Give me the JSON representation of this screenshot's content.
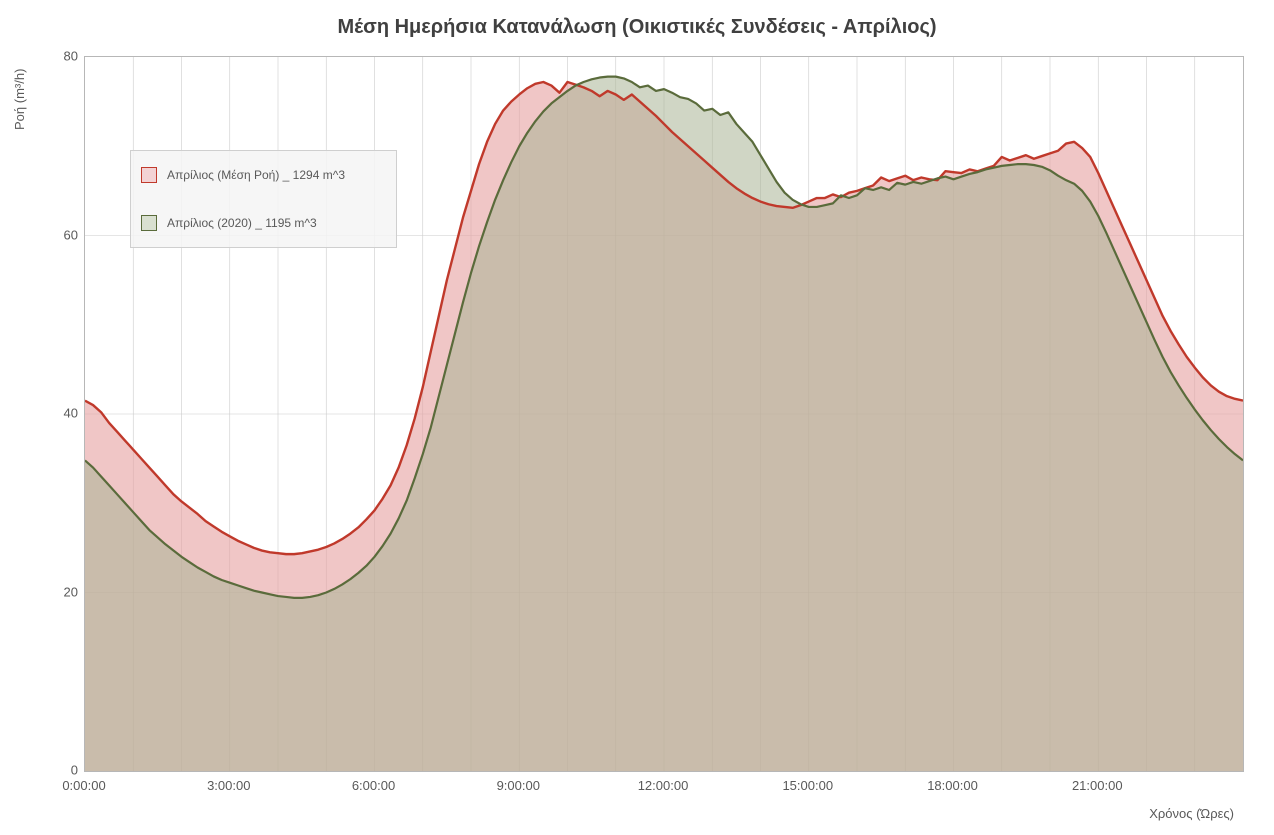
{
  "chart": {
    "type": "area",
    "title": "Μέση Ημερήσια Κατανάλωση (Οικιστικές Συνδέσεις - Απρίλιος)",
    "title_fontsize": 20,
    "title_color": "#404040",
    "y_label": "Ροή (m³/h)",
    "x_label": "Χρόνος (Ώρες)",
    "label_fontsize": 13,
    "label_color": "#595959",
    "background_color": "#ffffff",
    "plot_border_color": "#b7b7b7",
    "grid_color": "#cccccc",
    "grid_width": 0.6,
    "y": {
      "min": 0,
      "max": 80,
      "ticks": [
        0,
        20,
        40,
        60,
        80
      ]
    },
    "x": {
      "min_min": 0,
      "max_min": 1440,
      "tick_labels": [
        "0:00:00",
        "3:00:00",
        "6:00:00",
        "9:00:00",
        "12:00:00",
        "15:00:00",
        "18:00:00",
        "21:00:00"
      ],
      "tick_mins": [
        0,
        180,
        360,
        540,
        720,
        900,
        1080,
        1260
      ],
      "minor_step_min": 60
    },
    "legend": {
      "position": "top-left",
      "background": "rgba(245,245,245,0.85)",
      "border_color": "#cfcfcf",
      "items": [
        {
          "label": "Απρίλιος (Μέση Ροή) _ 1294 m^3",
          "fill": "#f3d2d4",
          "stroke": "#c0392b"
        },
        {
          "label": "Απρίλιος (2020) _ 1195 m^3",
          "fill": "#d9e0d0",
          "stroke": "#5a6b3b"
        }
      ]
    },
    "series": [
      {
        "name": "Απρίλιος (Μέση Ροή)",
        "stroke": "#c0392b",
        "stroke_width": 2.4,
        "fill": "rgba(230,160,160,0.60)",
        "data": [
          [
            0,
            41.5
          ],
          [
            10,
            41.0
          ],
          [
            20,
            40.2
          ],
          [
            30,
            39.0
          ],
          [
            40,
            38.0
          ],
          [
            50,
            37.0
          ],
          [
            60,
            36.0
          ],
          [
            70,
            35.0
          ],
          [
            80,
            34.0
          ],
          [
            90,
            33.0
          ],
          [
            100,
            32.0
          ],
          [
            110,
            31.0
          ],
          [
            120,
            30.2
          ],
          [
            130,
            29.5
          ],
          [
            140,
            28.8
          ],
          [
            150,
            28.0
          ],
          [
            160,
            27.4
          ],
          [
            170,
            26.8
          ],
          [
            180,
            26.3
          ],
          [
            190,
            25.8
          ],
          [
            200,
            25.4
          ],
          [
            210,
            25.0
          ],
          [
            220,
            24.7
          ],
          [
            230,
            24.5
          ],
          [
            240,
            24.4
          ],
          [
            250,
            24.3
          ],
          [
            260,
            24.3
          ],
          [
            270,
            24.4
          ],
          [
            280,
            24.6
          ],
          [
            290,
            24.8
          ],
          [
            300,
            25.1
          ],
          [
            310,
            25.5
          ],
          [
            320,
            26.0
          ],
          [
            330,
            26.6
          ],
          [
            340,
            27.3
          ],
          [
            350,
            28.2
          ],
          [
            360,
            29.2
          ],
          [
            370,
            30.5
          ],
          [
            380,
            32.0
          ],
          [
            390,
            34.0
          ],
          [
            400,
            36.5
          ],
          [
            410,
            39.5
          ],
          [
            420,
            43.0
          ],
          [
            430,
            47.0
          ],
          [
            440,
            51.0
          ],
          [
            450,
            55.0
          ],
          [
            460,
            58.5
          ],
          [
            470,
            62.0
          ],
          [
            480,
            65.0
          ],
          [
            490,
            68.0
          ],
          [
            500,
            70.5
          ],
          [
            510,
            72.5
          ],
          [
            520,
            74.0
          ],
          [
            530,
            75.0
          ],
          [
            540,
            75.8
          ],
          [
            550,
            76.5
          ],
          [
            560,
            77.0
          ],
          [
            570,
            77.2
          ],
          [
            580,
            76.8
          ],
          [
            590,
            76.0
          ],
          [
            600,
            77.2
          ],
          [
            610,
            76.9
          ],
          [
            620,
            76.6
          ],
          [
            630,
            76.2
          ],
          [
            640,
            75.6
          ],
          [
            650,
            76.2
          ],
          [
            660,
            75.8
          ],
          [
            670,
            75.2
          ],
          [
            680,
            75.8
          ],
          [
            690,
            75.0
          ],
          [
            700,
            74.2
          ],
          [
            710,
            73.4
          ],
          [
            720,
            72.5
          ],
          [
            730,
            71.6
          ],
          [
            740,
            70.8
          ],
          [
            750,
            70.0
          ],
          [
            760,
            69.2
          ],
          [
            770,
            68.4
          ],
          [
            780,
            67.6
          ],
          [
            790,
            66.8
          ],
          [
            800,
            66.0
          ],
          [
            810,
            65.3
          ],
          [
            820,
            64.7
          ],
          [
            830,
            64.2
          ],
          [
            840,
            63.8
          ],
          [
            850,
            63.5
          ],
          [
            860,
            63.3
          ],
          [
            870,
            63.2
          ],
          [
            880,
            63.1
          ],
          [
            890,
            63.4
          ],
          [
            900,
            63.8
          ],
          [
            910,
            64.2
          ],
          [
            920,
            64.2
          ],
          [
            930,
            64.6
          ],
          [
            940,
            64.3
          ],
          [
            950,
            64.8
          ],
          [
            960,
            65.0
          ],
          [
            970,
            65.3
          ],
          [
            980,
            65.6
          ],
          [
            990,
            66.5
          ],
          [
            1000,
            66.1
          ],
          [
            1010,
            66.4
          ],
          [
            1020,
            66.7
          ],
          [
            1030,
            66.2
          ],
          [
            1040,
            66.5
          ],
          [
            1050,
            66.3
          ],
          [
            1060,
            66.2
          ],
          [
            1070,
            67.2
          ],
          [
            1080,
            67.1
          ],
          [
            1090,
            67.0
          ],
          [
            1100,
            67.4
          ],
          [
            1110,
            67.2
          ],
          [
            1120,
            67.5
          ],
          [
            1130,
            67.8
          ],
          [
            1140,
            68.8
          ],
          [
            1150,
            68.4
          ],
          [
            1160,
            68.7
          ],
          [
            1170,
            69.0
          ],
          [
            1180,
            68.6
          ],
          [
            1190,
            68.9
          ],
          [
            1200,
            69.2
          ],
          [
            1210,
            69.5
          ],
          [
            1220,
            70.3
          ],
          [
            1230,
            70.5
          ],
          [
            1240,
            69.8
          ],
          [
            1250,
            68.8
          ],
          [
            1260,
            67.0
          ],
          [
            1270,
            65.0
          ],
          [
            1280,
            63.0
          ],
          [
            1290,
            61.0
          ],
          [
            1300,
            59.0
          ],
          [
            1310,
            57.0
          ],
          [
            1320,
            55.0
          ],
          [
            1330,
            53.0
          ],
          [
            1340,
            51.0
          ],
          [
            1350,
            49.3
          ],
          [
            1360,
            47.8
          ],
          [
            1370,
            46.4
          ],
          [
            1380,
            45.2
          ],
          [
            1390,
            44.1
          ],
          [
            1400,
            43.2
          ],
          [
            1410,
            42.5
          ],
          [
            1420,
            42.0
          ],
          [
            1430,
            41.7
          ],
          [
            1440,
            41.5
          ]
        ]
      },
      {
        "name": "Απρίλιος (2020)",
        "stroke": "#5a6b3b",
        "stroke_width": 2.2,
        "fill": "rgba(170,180,150,0.55)",
        "data": [
          [
            0,
            34.8
          ],
          [
            10,
            34.0
          ],
          [
            20,
            33.0
          ],
          [
            30,
            32.0
          ],
          [
            40,
            31.0
          ],
          [
            50,
            30.0
          ],
          [
            60,
            29.0
          ],
          [
            70,
            28.0
          ],
          [
            80,
            27.0
          ],
          [
            90,
            26.2
          ],
          [
            100,
            25.4
          ],
          [
            110,
            24.7
          ],
          [
            120,
            24.0
          ],
          [
            130,
            23.4
          ],
          [
            140,
            22.8
          ],
          [
            150,
            22.3
          ],
          [
            160,
            21.8
          ],
          [
            170,
            21.4
          ],
          [
            180,
            21.1
          ],
          [
            190,
            20.8
          ],
          [
            200,
            20.5
          ],
          [
            210,
            20.2
          ],
          [
            220,
            20.0
          ],
          [
            230,
            19.8
          ],
          [
            240,
            19.6
          ],
          [
            250,
            19.5
          ],
          [
            260,
            19.4
          ],
          [
            270,
            19.4
          ],
          [
            280,
            19.5
          ],
          [
            290,
            19.7
          ],
          [
            300,
            20.0
          ],
          [
            310,
            20.4
          ],
          [
            320,
            20.9
          ],
          [
            330,
            21.5
          ],
          [
            340,
            22.2
          ],
          [
            350,
            23.0
          ],
          [
            360,
            24.0
          ],
          [
            370,
            25.2
          ],
          [
            380,
            26.6
          ],
          [
            390,
            28.3
          ],
          [
            400,
            30.3
          ],
          [
            410,
            32.8
          ],
          [
            420,
            35.5
          ],
          [
            430,
            38.5
          ],
          [
            440,
            42.0
          ],
          [
            450,
            45.5
          ],
          [
            460,
            49.0
          ],
          [
            470,
            52.5
          ],
          [
            480,
            55.8
          ],
          [
            490,
            58.8
          ],
          [
            500,
            61.5
          ],
          [
            510,
            64.0
          ],
          [
            520,
            66.2
          ],
          [
            530,
            68.2
          ],
          [
            540,
            70.0
          ],
          [
            550,
            71.5
          ],
          [
            560,
            72.8
          ],
          [
            570,
            73.9
          ],
          [
            580,
            74.8
          ],
          [
            590,
            75.5
          ],
          [
            600,
            76.2
          ],
          [
            610,
            76.8
          ],
          [
            620,
            77.2
          ],
          [
            630,
            77.5
          ],
          [
            640,
            77.7
          ],
          [
            650,
            77.8
          ],
          [
            660,
            77.8
          ],
          [
            670,
            77.6
          ],
          [
            680,
            77.2
          ],
          [
            690,
            76.6
          ],
          [
            700,
            76.8
          ],
          [
            710,
            76.2
          ],
          [
            720,
            76.4
          ],
          [
            730,
            76.0
          ],
          [
            740,
            75.5
          ],
          [
            750,
            75.3
          ],
          [
            760,
            74.8
          ],
          [
            770,
            74.0
          ],
          [
            780,
            74.2
          ],
          [
            790,
            73.5
          ],
          [
            800,
            73.8
          ],
          [
            810,
            72.5
          ],
          [
            820,
            71.5
          ],
          [
            830,
            70.5
          ],
          [
            840,
            69.0
          ],
          [
            850,
            67.5
          ],
          [
            860,
            66.0
          ],
          [
            870,
            64.8
          ],
          [
            880,
            64.0
          ],
          [
            890,
            63.5
          ],
          [
            900,
            63.2
          ],
          [
            910,
            63.2
          ],
          [
            920,
            63.4
          ],
          [
            930,
            63.6
          ],
          [
            940,
            64.5
          ],
          [
            950,
            64.2
          ],
          [
            960,
            64.5
          ],
          [
            970,
            65.3
          ],
          [
            980,
            65.1
          ],
          [
            990,
            65.4
          ],
          [
            1000,
            65.1
          ],
          [
            1010,
            65.9
          ],
          [
            1020,
            65.7
          ],
          [
            1030,
            66.0
          ],
          [
            1040,
            65.8
          ],
          [
            1050,
            66.1
          ],
          [
            1060,
            66.4
          ],
          [
            1070,
            66.6
          ],
          [
            1080,
            66.3
          ],
          [
            1090,
            66.6
          ],
          [
            1100,
            66.9
          ],
          [
            1110,
            67.1
          ],
          [
            1120,
            67.4
          ],
          [
            1130,
            67.6
          ],
          [
            1140,
            67.8
          ],
          [
            1150,
            67.9
          ],
          [
            1160,
            68.0
          ],
          [
            1170,
            68.0
          ],
          [
            1180,
            67.9
          ],
          [
            1190,
            67.7
          ],
          [
            1200,
            67.3
          ],
          [
            1210,
            66.7
          ],
          [
            1220,
            66.2
          ],
          [
            1230,
            65.8
          ],
          [
            1240,
            65.0
          ],
          [
            1250,
            63.8
          ],
          [
            1260,
            62.2
          ],
          [
            1270,
            60.3
          ],
          [
            1280,
            58.3
          ],
          [
            1290,
            56.3
          ],
          [
            1300,
            54.3
          ],
          [
            1310,
            52.3
          ],
          [
            1320,
            50.3
          ],
          [
            1330,
            48.3
          ],
          [
            1340,
            46.4
          ],
          [
            1350,
            44.7
          ],
          [
            1360,
            43.2
          ],
          [
            1370,
            41.8
          ],
          [
            1380,
            40.5
          ],
          [
            1390,
            39.3
          ],
          [
            1400,
            38.2
          ],
          [
            1410,
            37.2
          ],
          [
            1420,
            36.3
          ],
          [
            1430,
            35.5
          ],
          [
            1440,
            34.8
          ]
        ]
      }
    ]
  }
}
